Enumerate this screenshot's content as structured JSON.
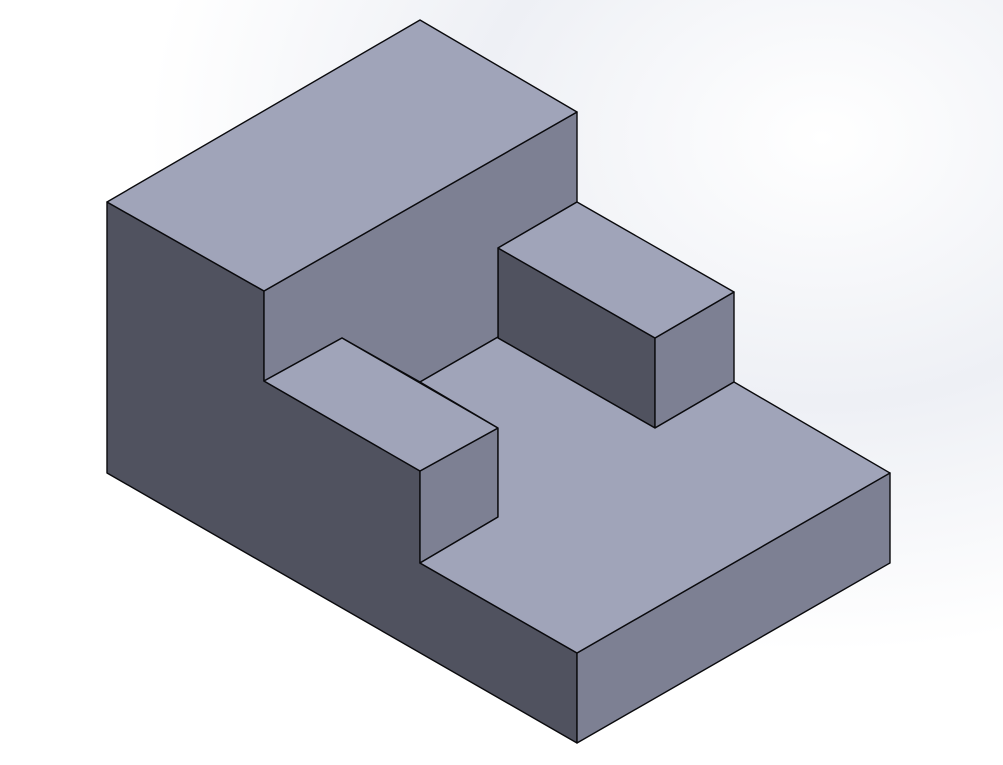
{
  "viewport": {
    "background_color": "#ffffff",
    "gradient_color": "#e9ebf2"
  },
  "model": {
    "view": "isometric",
    "face_colors": {
      "top": "#a0a4b9",
      "right": "#7d8093",
      "left": "#50525f",
      "edge": "#0a0a0d"
    }
  }
}
